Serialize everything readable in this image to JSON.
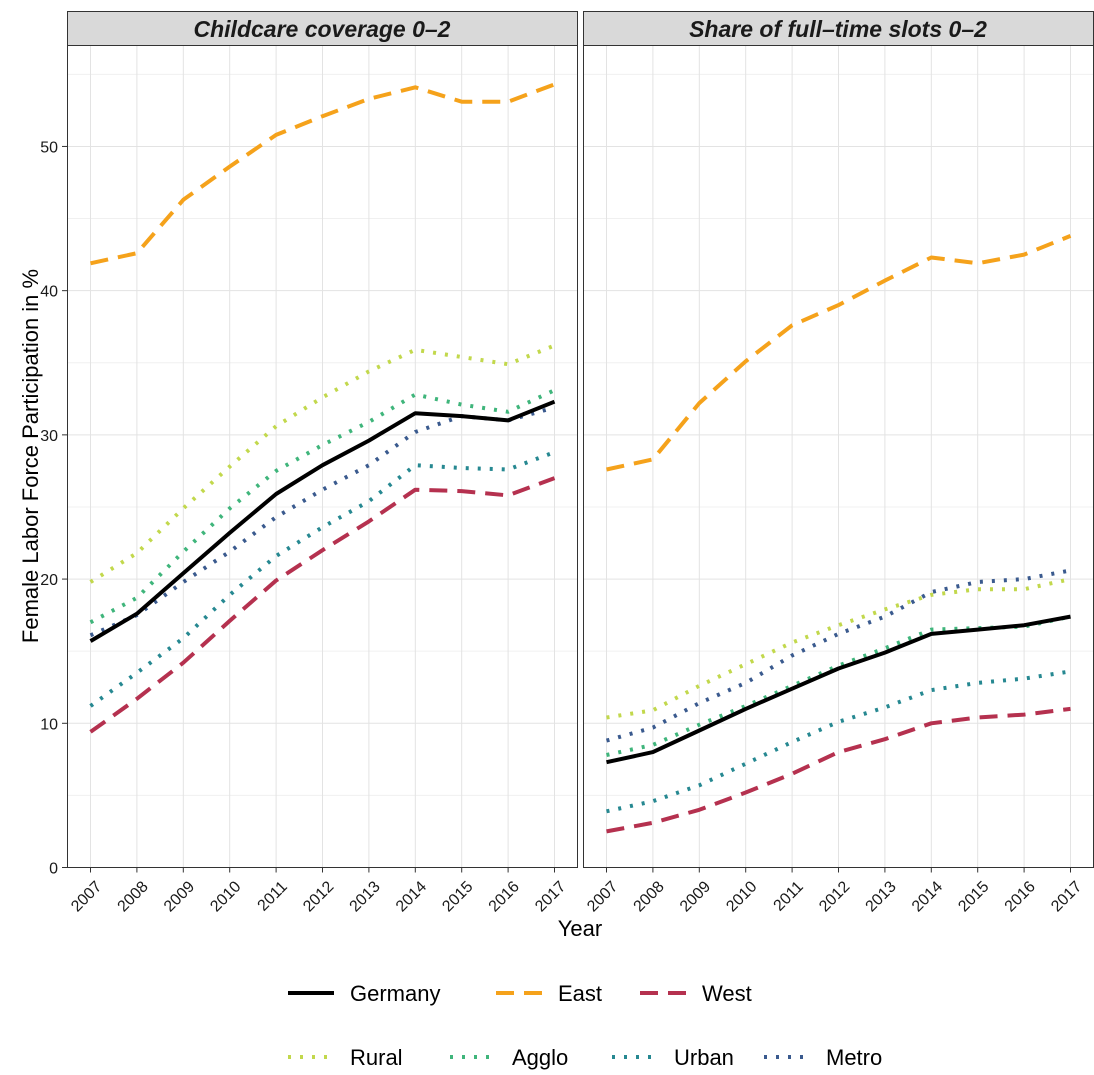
{
  "chart_data": {
    "type": "line",
    "ylabel": "Female Labor Force Participation in %",
    "xlabel": "Year",
    "x": [
      2007,
      2008,
      2009,
      2010,
      2011,
      2012,
      2013,
      2014,
      2015,
      2016,
      2017
    ],
    "ylim": [
      0,
      57
    ],
    "yticks": [
      0,
      10,
      20,
      30,
      40,
      50
    ],
    "grid": true,
    "legend_position": "bottom",
    "series_styles": {
      "Germany": {
        "color": "#000000",
        "dash": "solid"
      },
      "East": {
        "color": "#f5a21b",
        "dash": "dashed"
      },
      "West": {
        "color": "#b5314f",
        "dash": "dashed"
      },
      "Rural": {
        "color": "#c2d84c",
        "dash": "dotted"
      },
      "Agglo": {
        "color": "#3fb57b",
        "dash": "dotted"
      },
      "Urban": {
        "color": "#268891",
        "dash": "dotted"
      },
      "Metro": {
        "color": "#3a5a8e",
        "dash": "dotted"
      }
    },
    "legend_rows": [
      [
        "Germany",
        "East",
        "West"
      ],
      [
        "Rural",
        "Agglo",
        "Urban",
        "Metro"
      ]
    ],
    "panels": [
      {
        "title": "Childcare coverage 0–2",
        "series": [
          {
            "name": "East",
            "values": [
              41.9,
              42.6,
              46.3,
              48.6,
              50.8,
              52.1,
              53.3,
              54.1,
              53.1,
              53.1,
              54.3
            ]
          },
          {
            "name": "Rural",
            "values": [
              19.8,
              21.8,
              24.9,
              27.8,
              30.6,
              32.6,
              34.4,
              35.9,
              35.4,
              34.9,
              36.2
            ]
          },
          {
            "name": "Agglo",
            "values": [
              17.0,
              18.7,
              21.9,
              24.9,
              27.5,
              29.3,
              30.9,
              32.8,
              32.1,
              31.6,
              33.1
            ]
          },
          {
            "name": "Metro",
            "values": [
              16.1,
              17.5,
              19.8,
              21.9,
              24.3,
              26.2,
              27.9,
              30.2,
              31.3,
              31.0,
              31.9
            ]
          },
          {
            "name": "Urban",
            "values": [
              11.2,
              13.5,
              15.9,
              18.9,
              21.6,
              23.6,
              25.4,
              27.9,
              27.7,
              27.6,
              28.8
            ]
          },
          {
            "name": "West",
            "values": [
              9.4,
              11.7,
              14.2,
              17.1,
              19.9,
              22.0,
              24.0,
              26.2,
              26.1,
              25.8,
              27.0
            ]
          },
          {
            "name": "Germany",
            "values": [
              15.7,
              17.6,
              20.4,
              23.2,
              25.9,
              27.9,
              29.6,
              31.5,
              31.3,
              31.0,
              32.3
            ]
          }
        ]
      },
      {
        "title": "Share of full–time slots 0–2",
        "series": [
          {
            "name": "East",
            "values": [
              27.6,
              28.3,
              32.2,
              35.1,
              37.6,
              39.0,
              40.7,
              42.3,
              41.9,
              42.5,
              43.8
            ]
          },
          {
            "name": "Metro",
            "values": [
              8.8,
              9.7,
              11.4,
              12.8,
              14.7,
              16.2,
              17.4,
              19.1,
              19.8,
              20.0,
              20.6
            ]
          },
          {
            "name": "Rural",
            "values": [
              10.4,
              10.9,
              12.6,
              14.1,
              15.6,
              16.8,
              17.9,
              18.9,
              19.3,
              19.3,
              20.0
            ]
          },
          {
            "name": "Agglo",
            "values": [
              7.8,
              8.5,
              9.9,
              11.2,
              12.6,
              14.0,
              15.2,
              16.5,
              16.6,
              16.7,
              17.4
            ]
          },
          {
            "name": "Germany",
            "values": [
              7.3,
              8.0,
              9.5,
              11.0,
              12.4,
              13.8,
              14.9,
              16.2,
              16.5,
              16.8,
              17.4
            ]
          },
          {
            "name": "Urban",
            "values": [
              3.9,
              4.6,
              5.7,
              7.2,
              8.7,
              10.1,
              11.1,
              12.3,
              12.8,
              13.1,
              13.6
            ]
          },
          {
            "name": "West",
            "values": [
              2.5,
              3.1,
              4.0,
              5.2,
              6.5,
              8.0,
              8.9,
              10.0,
              10.4,
              10.6,
              11.0
            ]
          }
        ]
      }
    ]
  }
}
